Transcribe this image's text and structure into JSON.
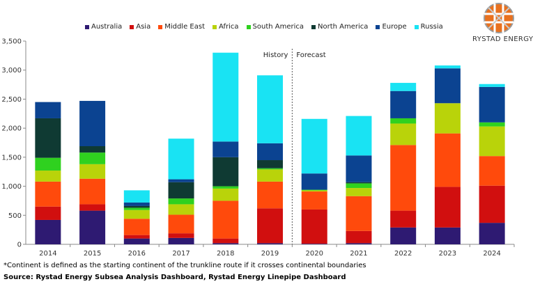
{
  "brand": {
    "name": "RYSTAD ENERGY"
  },
  "footnote": "*Continent is defined as the starting continent of the trunkline route if it crosses continental boundaries",
  "source": "Source: Rystad Energy Subsea Analysis Dashboard, Rystad Energy Linepipe Dashboard",
  "chart_data": {
    "type": "bar",
    "stacked": true,
    "categories": [
      "2014",
      "2015",
      "2016",
      "2017",
      "2018",
      "2019",
      "2020",
      "2021",
      "2022",
      "2023",
      "2024"
    ],
    "ylim": [
      0,
      3500
    ],
    "yticks": [
      "0",
      "500",
      "1,000",
      "1,500",
      "2,000",
      "2,500",
      "3,000",
      "3,500"
    ],
    "ytick_values": [
      0,
      500,
      1000,
      1500,
      2000,
      2500,
      3000,
      3500
    ],
    "legend_position": "top",
    "annotations": {
      "history": "History",
      "forecast": "Forecast",
      "divider_between": [
        "2019",
        "2020"
      ]
    },
    "series": [
      {
        "name": "Australia",
        "color": "#2e1a72",
        "values": [
          420,
          580,
          100,
          110,
          20,
          20,
          10,
          20,
          290,
          290,
          370
        ]
      },
      {
        "name": "Asia",
        "color": "#d10f0f",
        "values": [
          230,
          110,
          60,
          80,
          80,
          600,
          590,
          210,
          290,
          700,
          640
        ]
      },
      {
        "name": "Middle East",
        "color": "#ff4a0c",
        "values": [
          430,
          440,
          280,
          320,
          650,
          460,
          310,
          600,
          1130,
          920,
          510
        ]
      },
      {
        "name": "Africa",
        "color": "#b9d30a",
        "values": [
          190,
          250,
          150,
          180,
          210,
          210,
          20,
          140,
          370,
          520,
          510
        ]
      },
      {
        "name": "South America",
        "color": "#2fd11f",
        "values": [
          220,
          200,
          40,
          100,
          40,
          20,
          10,
          80,
          90,
          0,
          70
        ]
      },
      {
        "name": "North America",
        "color": "#0f3a33",
        "values": [
          680,
          110,
          30,
          280,
          500,
          140,
          0,
          20,
          0,
          0,
          0
        ]
      },
      {
        "name": "Europe",
        "color": "#0b4391",
        "values": [
          280,
          780,
          60,
          50,
          270,
          290,
          280,
          460,
          470,
          600,
          610
        ]
      },
      {
        "name": "Russia",
        "color": "#19e3f3",
        "values": [
          0,
          0,
          210,
          700,
          1530,
          1170,
          940,
          680,
          140,
          50,
          50
        ]
      }
    ]
  }
}
